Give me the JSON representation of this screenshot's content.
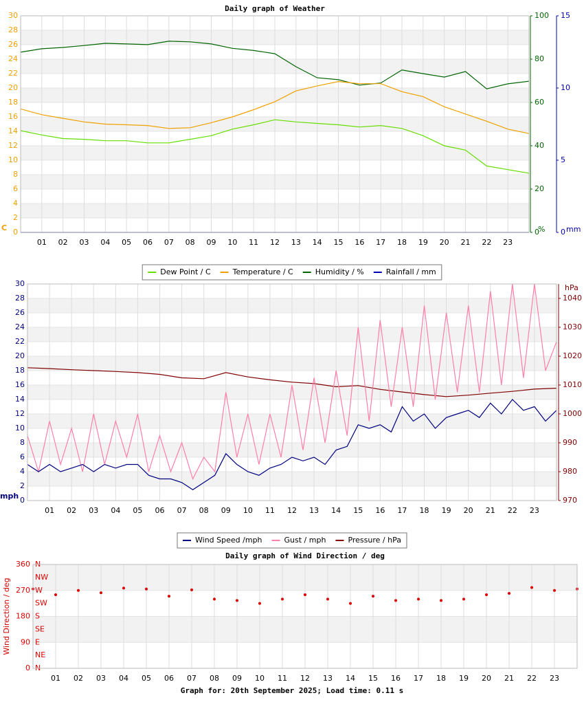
{
  "chart_data": [
    {
      "type": "line",
      "title": "Daily graph of Weather",
      "x": [
        0,
        1,
        2,
        3,
        4,
        5,
        6,
        7,
        8,
        9,
        10,
        11,
        12,
        13,
        14,
        15,
        16,
        17,
        18,
        19,
        20,
        21,
        22,
        23,
        24
      ],
      "xlim": [
        0,
        24
      ],
      "xticks": [
        {
          "value": 1,
          "label": "01"
        },
        {
          "value": 2,
          "label": "02"
        },
        {
          "value": 3,
          "label": "03"
        },
        {
          "value": 4,
          "label": "04"
        },
        {
          "value": 5,
          "label": "05"
        },
        {
          "value": 6,
          "label": "06"
        },
        {
          "value": 7,
          "label": "07"
        },
        {
          "value": 8,
          "label": "08"
        },
        {
          "value": 9,
          "label": "09"
        },
        {
          "value": 10,
          "label": "10"
        },
        {
          "value": 11,
          "label": "11"
        },
        {
          "value": 12,
          "label": "12"
        },
        {
          "value": 13,
          "label": "13"
        },
        {
          "value": 14,
          "label": "14"
        },
        {
          "value": 15,
          "label": "15"
        },
        {
          "value": 16,
          "label": "16"
        },
        {
          "value": 17,
          "label": "17"
        },
        {
          "value": 18,
          "label": "18"
        },
        {
          "value": 19,
          "label": "19"
        },
        {
          "value": 20,
          "label": "20"
        },
        {
          "value": 21,
          "label": "21"
        },
        {
          "value": 22,
          "label": "22"
        },
        {
          "value": 23,
          "label": "23"
        }
      ],
      "ylim": [
        0,
        30
      ],
      "yticks": [
        0,
        2,
        4,
        6,
        8,
        10,
        12,
        14,
        16,
        18,
        20,
        22,
        24,
        26,
        28,
        30
      ],
      "ylabel": "C",
      "y2lim": [
        0,
        100
      ],
      "y2ticks": [
        0,
        20,
        40,
        60,
        80,
        100
      ],
      "y2label": "%",
      "y3lim": [
        0,
        15
      ],
      "y3ticks": [
        0,
        5,
        10,
        15
      ],
      "y3label": "mm",
      "axis_colors": {
        "y": "#f0a000",
        "y2": "#006400",
        "y3": "#0000b0"
      },
      "grid": true,
      "legend": "bottom",
      "series": [
        {
          "name": "Dew Point / C",
          "color": "#66dd00",
          "values": [
            14.1,
            13.5,
            13.0,
            12.9,
            12.7,
            12.7,
            12.4,
            12.4,
            12.9,
            13.4,
            14.3,
            14.9,
            15.6,
            15.3,
            15.1,
            14.9,
            14.6,
            14.8,
            14.4,
            13.4,
            12.0,
            11.4,
            9.2,
            8.7,
            8.2
          ]
        },
        {
          "name": "Temperature / C",
          "color": "#f0a000",
          "values": [
            17.1,
            16.3,
            15.8,
            15.3,
            15.0,
            14.9,
            14.8,
            14.4,
            14.5,
            15.2,
            16.0,
            17.0,
            18.1,
            19.6,
            20.3,
            20.9,
            20.6,
            20.6,
            19.5,
            18.8,
            17.4,
            16.4,
            15.4,
            14.3,
            13.7
          ]
        },
        {
          "name": "Humidity / %",
          "color": "#006400",
          "axis": "y2",
          "values": [
            83.2,
            84.8,
            85.4,
            86.3,
            87.3,
            87.0,
            86.7,
            88.3,
            88.0,
            87.0,
            85.0,
            84.0,
            82.5,
            76.5,
            71.4,
            70.5,
            68.0,
            69.0,
            75.0,
            73.3,
            71.7,
            74.3,
            66.3,
            68.6,
            69.8
          ]
        },
        {
          "name": "Rainfall / mm",
          "color": "#0000b0",
          "axis": "y3",
          "values": [
            0,
            0,
            0,
            0,
            0,
            0,
            0,
            0,
            0,
            0,
            0,
            0,
            0,
            0,
            0,
            0,
            0,
            0,
            0,
            0,
            0,
            0,
            0,
            0,
            0
          ]
        }
      ]
    },
    {
      "type": "line",
      "xlim": [
        0,
        24
      ],
      "xticks": [
        {
          "value": 1,
          "label": "01"
        },
        {
          "value": 2,
          "label": "02"
        },
        {
          "value": 3,
          "label": "03"
        },
        {
          "value": 4,
          "label": "04"
        },
        {
          "value": 5,
          "label": "05"
        },
        {
          "value": 6,
          "label": "06"
        },
        {
          "value": 7,
          "label": "07"
        },
        {
          "value": 8,
          "label": "08"
        },
        {
          "value": 9,
          "label": "09"
        },
        {
          "value": 10,
          "label": "10"
        },
        {
          "value": 11,
          "label": "11"
        },
        {
          "value": 12,
          "label": "12"
        },
        {
          "value": 13,
          "label": "13"
        },
        {
          "value": 14,
          "label": "14"
        },
        {
          "value": 15,
          "label": "15"
        },
        {
          "value": 16,
          "label": "16"
        },
        {
          "value": 17,
          "label": "17"
        },
        {
          "value": 18,
          "label": "18"
        },
        {
          "value": 19,
          "label": "19"
        },
        {
          "value": 20,
          "label": "20"
        },
        {
          "value": 21,
          "label": "21"
        },
        {
          "value": 22,
          "label": "22"
        },
        {
          "value": 23,
          "label": "23"
        }
      ],
      "ylim": [
        0,
        30
      ],
      "yticks": [
        0,
        2,
        4,
        6,
        8,
        10,
        12,
        14,
        16,
        18,
        20,
        22,
        24,
        26,
        28,
        30
      ],
      "ylabel": "mph",
      "y2lim": [
        970,
        1045
      ],
      "y2ticks": [
        970,
        980,
        990,
        1000,
        1010,
        1020,
        1030,
        1040
      ],
      "y2label": "hPa",
      "axis_colors": {
        "y": "#000080",
        "y2": "#800000"
      },
      "grid": true,
      "legend": "bottom",
      "series": [
        {
          "name": "Wind Speed /mph",
          "color": "#000080",
          "x": [
            0,
            0.5,
            1,
            1.5,
            2,
            2.5,
            3,
            3.5,
            4,
            4.5,
            5,
            5.5,
            6,
            6.5,
            7,
            7.5,
            8,
            8.5,
            9,
            9.5,
            10,
            10.5,
            11,
            11.5,
            12,
            12.5,
            13,
            13.5,
            14,
            14.5,
            15,
            15.5,
            16,
            16.5,
            17,
            17.5,
            18,
            18.5,
            19,
            19.5,
            20,
            20.5,
            21,
            21.5,
            22,
            22.5,
            23,
            23.5,
            24
          ],
          "values": [
            5,
            4,
            5,
            4,
            4.5,
            5,
            4,
            5,
            4.5,
            5,
            5,
            3.5,
            3,
            3,
            2.5,
            1.5,
            2.5,
            3.5,
            6.5,
            5,
            4,
            3.5,
            4.5,
            5,
            6,
            5.5,
            6,
            5,
            7,
            7.5,
            10.5,
            10,
            10.5,
            9.5,
            13,
            11,
            12,
            10,
            11.5,
            12,
            12.5,
            11.5,
            13.5,
            12,
            14,
            12.5,
            13,
            11,
            12.5
          ]
        },
        {
          "name": "Gust / mph",
          "color": "#ff7fa8",
          "x": [
            0,
            0.5,
            1,
            1.5,
            2,
            2.5,
            3,
            3.5,
            4,
            4.5,
            5,
            5.5,
            6,
            6.5,
            7,
            7.5,
            8,
            8.5,
            9,
            9.5,
            10,
            10.5,
            11,
            11.5,
            12,
            12.5,
            13,
            13.5,
            14,
            14.5,
            15,
            15.5,
            16,
            16.5,
            17,
            17.5,
            18,
            18.5,
            19,
            19.5,
            20,
            20.5,
            21,
            21.5,
            22,
            22.5,
            23,
            23.5,
            24
          ],
          "values": [
            9,
            4,
            11,
            5,
            10,
            4,
            12,
            5,
            11,
            6,
            12,
            4,
            9,
            4,
            8,
            3,
            6,
            4,
            15,
            6,
            12,
            5,
            12,
            6,
            16,
            7,
            17,
            8,
            18,
            9,
            24,
            11,
            25,
            13,
            24,
            13,
            27,
            14,
            26,
            15,
            27,
            15,
            29,
            16,
            30,
            17,
            30,
            18,
            22
          ]
        },
        {
          "name": "Pressure / hPa",
          "color": "#800000",
          "axis": "y2",
          "x": [
            0,
            1,
            2,
            3,
            4,
            5,
            6,
            7,
            8,
            9,
            10,
            11,
            12,
            13,
            14,
            15,
            16,
            17,
            18,
            19,
            20,
            21,
            22,
            23,
            24
          ],
          "values": [
            1016,
            1015.7,
            1015.3,
            1015.0,
            1014.7,
            1014.3,
            1013.7,
            1012.5,
            1012.2,
            1014.3,
            1012.8,
            1011.8,
            1011.0,
            1010.5,
            1009.4,
            1009.8,
            1008.5,
            1007.6,
            1006.7,
            1006.0,
            1006.5,
            1007.2,
            1007.8,
            1008.6,
            1008.9
          ]
        }
      ]
    },
    {
      "type": "scatter",
      "title": "Daily graph of Wind Direction / deg",
      "x": [
        0,
        1,
        2,
        3,
        4,
        5,
        6,
        7,
        8,
        9,
        10,
        11,
        12,
        13,
        14,
        15,
        16,
        17,
        18,
        19,
        20,
        21,
        22,
        23,
        24
      ],
      "xlim": [
        0,
        24
      ],
      "xticks": [
        {
          "value": 1,
          "label": "01"
        },
        {
          "value": 2,
          "label": "02"
        },
        {
          "value": 3,
          "label": "03"
        },
        {
          "value": 4,
          "label": "04"
        },
        {
          "value": 5,
          "label": "05"
        },
        {
          "value": 6,
          "label": "06"
        },
        {
          "value": 7,
          "label": "07"
        },
        {
          "value": 8,
          "label": "08"
        },
        {
          "value": 9,
          "label": "09"
        },
        {
          "value": 10,
          "label": "10"
        },
        {
          "value": 11,
          "label": "11"
        },
        {
          "value": 12,
          "label": "12"
        },
        {
          "value": 13,
          "label": "13"
        },
        {
          "value": 14,
          "label": "14"
        },
        {
          "value": 15,
          "label": "15"
        },
        {
          "value": 16,
          "label": "16"
        },
        {
          "value": 17,
          "label": "17"
        },
        {
          "value": 18,
          "label": "18"
        },
        {
          "value": 19,
          "label": "19"
        },
        {
          "value": 20,
          "label": "20"
        },
        {
          "value": 21,
          "label": "21"
        },
        {
          "value": 22,
          "label": "22"
        },
        {
          "value": 23,
          "label": "23"
        }
      ],
      "ylim": [
        0,
        360
      ],
      "yticks": [
        0,
        90,
        180,
        270,
        360
      ],
      "ylabel": "Wind Direction / deg",
      "compass_ticks": [
        {
          "value": 360,
          "label": "N"
        },
        {
          "value": 315,
          "label": "NW"
        },
        {
          "value": 270,
          "label": "W"
        },
        {
          "value": 225,
          "label": "SW"
        },
        {
          "value": 180,
          "label": "S"
        },
        {
          "value": 135,
          "label": "SE"
        },
        {
          "value": 90,
          "label": "E"
        },
        {
          "value": 45,
          "label": "NE"
        },
        {
          "value": 0,
          "label": "N"
        }
      ],
      "axis_colors": {
        "y": "#dd0000"
      },
      "grid": true,
      "series": [
        {
          "name": "Wind Direction",
          "color": "#dd0000",
          "values": [
            275,
            255,
            270,
            262,
            278,
            275,
            250,
            272,
            240,
            235,
            225,
            240,
            255,
            240,
            225,
            250,
            235,
            240,
            235,
            240,
            255,
            260,
            280,
            270,
            275
          ]
        }
      ]
    }
  ],
  "footer": "Graph for: 20th September 2025; Load time: 0.11 s"
}
